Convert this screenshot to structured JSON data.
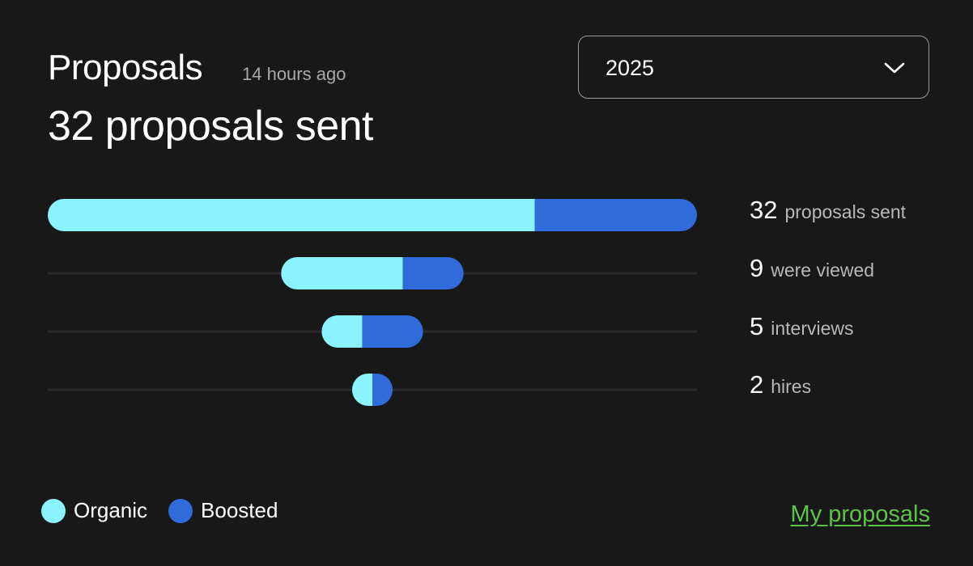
{
  "header": {
    "title": "Proposals",
    "timestamp": "14 hours ago",
    "summary": "32 proposals sent"
  },
  "year_select": {
    "value": "2025",
    "icon": "chevron-down-icon"
  },
  "chart_data": {
    "type": "bar",
    "orientation": "horizontal-funnel",
    "categories": [
      "proposals sent",
      "were viewed",
      "interviews",
      "hires"
    ],
    "totals": [
      32,
      9,
      5,
      2
    ],
    "series": [
      {
        "name": "Organic",
        "values": [
          24,
          6,
          2,
          1
        ],
        "color": "#8af3fd"
      },
      {
        "name": "Boosted",
        "values": [
          8,
          3,
          3,
          1
        ],
        "color": "#2f6bd9"
      }
    ],
    "xlim": [
      0,
      32
    ],
    "legend_position": "bottom-left",
    "grid": false
  },
  "legend": {
    "items": [
      {
        "label": "Organic",
        "color": "#8af3fd"
      },
      {
        "label": "Boosted",
        "color": "#2f6bd9"
      }
    ]
  },
  "footer": {
    "link_label": "My proposals",
    "link_color": "#5dc24a"
  }
}
